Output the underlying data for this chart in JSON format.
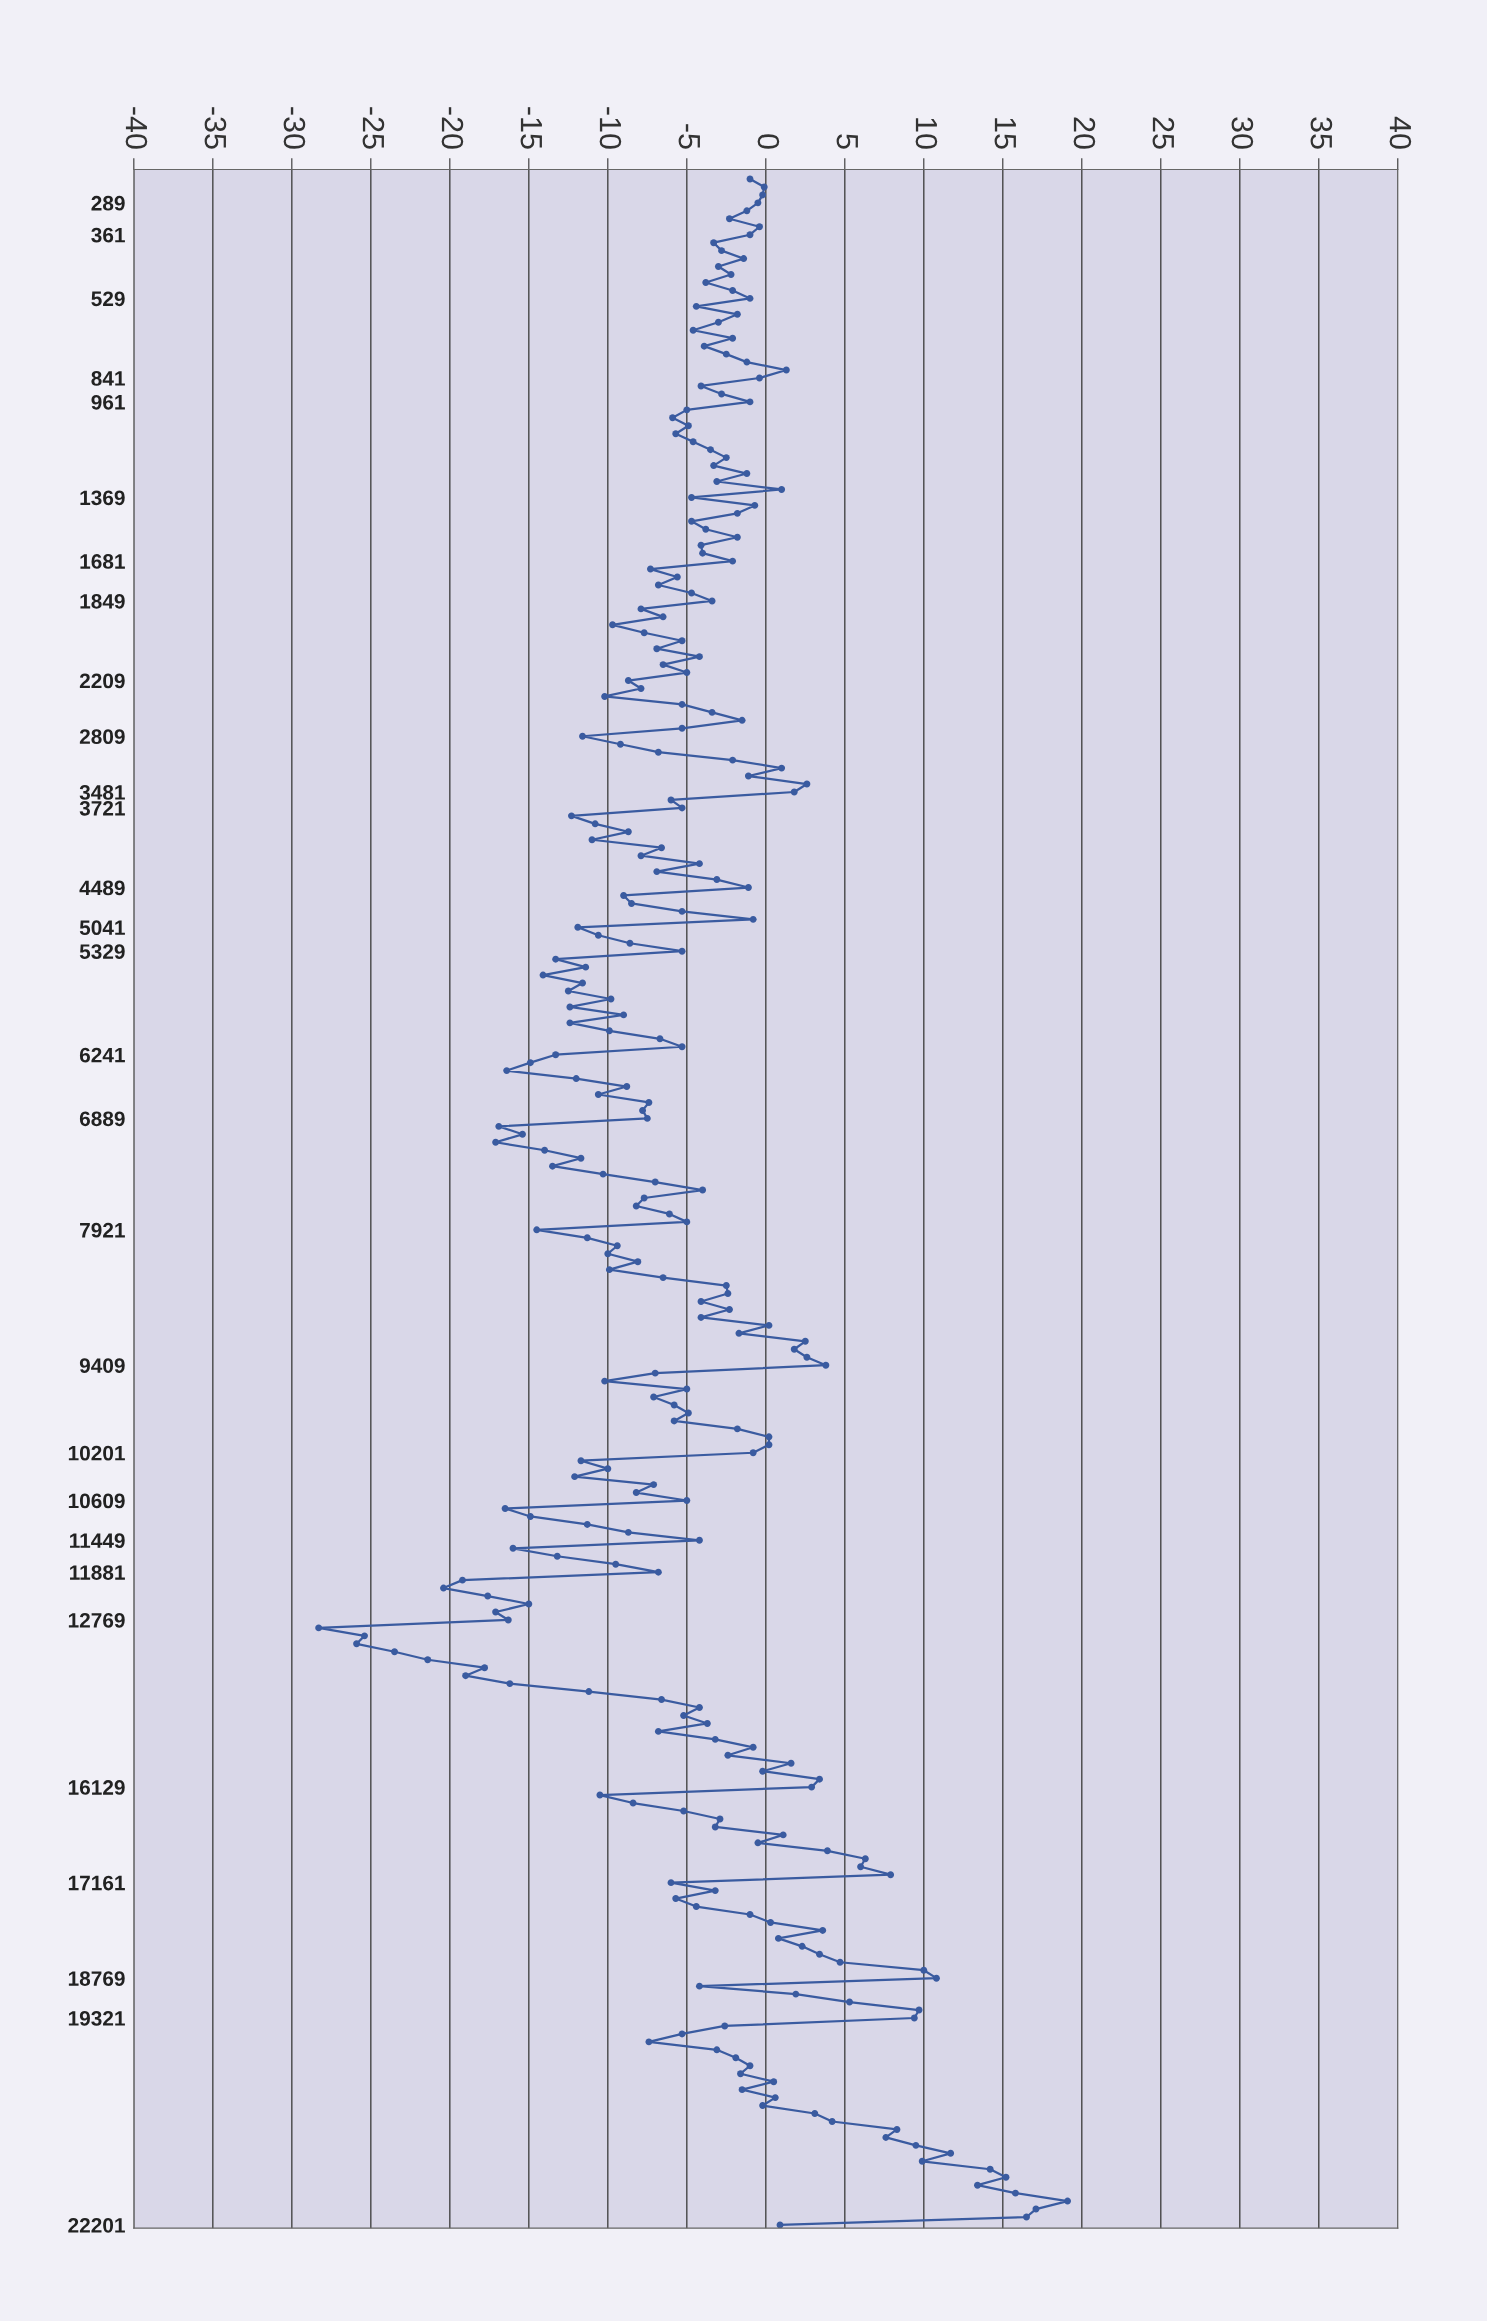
{
  "chart_data": {
    "type": "line",
    "orientation": "horizontal",
    "categories": [
      null,
      null,
      null,
      "289",
      null,
      null,
      null,
      "361",
      null,
      null,
      null,
      null,
      null,
      null,
      null,
      "529",
      null,
      null,
      null,
      null,
      null,
      null,
      null,
      null,
      null,
      "841",
      null,
      null,
      "961",
      null,
      null,
      null,
      null,
      null,
      null,
      null,
      null,
      null,
      null,
      null,
      "1369",
      null,
      null,
      null,
      null,
      null,
      null,
      null,
      "1681",
      null,
      null,
      null,
      null,
      "1849",
      null,
      null,
      null,
      null,
      null,
      null,
      null,
      null,
      null,
      "2209",
      null,
      null,
      null,
      null,
      null,
      null,
      "2809",
      null,
      null,
      null,
      null,
      null,
      null,
      "3481",
      null,
      "3721",
      null,
      null,
      null,
      null,
      null,
      null,
      null,
      null,
      null,
      "4489",
      null,
      null,
      null,
      null,
      "5041",
      null,
      null,
      "5329",
      null,
      null,
      null,
      null,
      null,
      null,
      null,
      null,
      null,
      null,
      null,
      null,
      "6241",
      null,
      null,
      null,
      null,
      null,
      null,
      null,
      "6889",
      null,
      null,
      null,
      null,
      null,
      null,
      null,
      null,
      null,
      null,
      null,
      null,
      null,
      "7921",
      null,
      null,
      null,
      null,
      null,
      null,
      null,
      null,
      null,
      null,
      null,
      null,
      null,
      null,
      null,
      null,
      "9409",
      null,
      null,
      null,
      null,
      null,
      null,
      null,
      null,
      null,
      null,
      "10201",
      null,
      null,
      null,
      null,
      null,
      "10609",
      null,
      null,
      null,
      null,
      "11449",
      null,
      null,
      null,
      "11881",
      null,
      null,
      null,
      null,
      null,
      "12769",
      null,
      null,
      null,
      null,
      null,
      null,
      null,
      null,
      null,
      null,
      null,
      null,
      null,
      null,
      null,
      null,
      null,
      null,
      null,
      null,
      "16129",
      null,
      null,
      null,
      null,
      null,
      null,
      null,
      null,
      null,
      null,
      null,
      "17161",
      null,
      null,
      null,
      null,
      null,
      null,
      null,
      null,
      null,
      null,
      null,
      "18769",
      null,
      null,
      null,
      null,
      "19321",
      null,
      null,
      null,
      null,
      null,
      null,
      null,
      null,
      null,
      null,
      null,
      null,
      null,
      null,
      null,
      null,
      null,
      null,
      null,
      null,
      null,
      null,
      null,
      null,
      null,
      "22201"
    ],
    "series": [
      {
        "color": "#3a5ba0",
        "values": [
          -1,
          -0.1,
          -0.2,
          -0.5,
          -1.2,
          -2.3,
          -0.4,
          -1,
          -3.3,
          -2.8,
          -1.4,
          -3,
          -2.2,
          -3.8,
          -2.1,
          -1,
          -4.4,
          -1.8,
          -3,
          -4.6,
          -2.1,
          -3.9,
          -2.5,
          -1.2,
          1.3,
          -0.4,
          -4.1,
          -2.8,
          -1,
          -5,
          -5.9,
          -4.9,
          -5.7,
          -4.6,
          -3.5,
          -2.5,
          -3.3,
          -1.2,
          -3.1,
          1,
          -4.7,
          -0.7,
          -1.8,
          -4.7,
          -3.8,
          -1.8,
          -4.1,
          -4,
          -2.1,
          -7.3,
          -5.6,
          -6.8,
          -4.7,
          -3.4,
          -7.9,
          -6.5,
          -9.7,
          -7.7,
          -5.3,
          -6.9,
          -4.2,
          -6.5,
          -5,
          -8.7,
          -7.9,
          -10.2,
          -5.3,
          -3.4,
          -1.5,
          -5.3,
          -11.6,
          -9.2,
          -6.8,
          -2.1,
          1,
          -1.1,
          2.6,
          1.8,
          -6,
          -5.3,
          -12.3,
          -10.8,
          -8.7,
          -11,
          -6.6,
          -7.9,
          -4.2,
          -6.9,
          -3.1,
          -1.1,
          -9,
          -8.5,
          -5.3,
          -0.8,
          -11.9,
          -10.6,
          -8.6,
          -5.3,
          -13.3,
          -11.4,
          -14.1,
          -11.6,
          -12.5,
          -9.8,
          -12.4,
          -9,
          -12.4,
          -9.9,
          -6.7,
          -5.3,
          -13.3,
          -14.9,
          -16.4,
          -12,
          -8.8,
          -10.6,
          -7.4,
          -7.8,
          -7.5,
          -16.9,
          -15.4,
          -17.1,
          -14,
          -11.7,
          -13.5,
          -10.3,
          -7,
          -4,
          -7.7,
          -8.2,
          -6.1,
          -5,
          -14.5,
          -11.3,
          -9.4,
          -10,
          -8.1,
          -9.9,
          -6.5,
          -2.5,
          -2.4,
          -4.1,
          -2.3,
          -4.1,
          0.2,
          -1.7,
          2.5,
          1.8,
          2.6,
          3.8,
          -7,
          -10.2,
          -5,
          -7.1,
          -5.8,
          -4.9,
          -5.8,
          -1.8,
          0.2,
          0.2,
          -0.8,
          -11.7,
          -10,
          -12.1,
          -7.1,
          -8.2,
          -5,
          -16.5,
          -14.9,
          -11.3,
          -8.7,
          -4.2,
          -16,
          -13.2,
          -9.5,
          -6.8,
          -19.2,
          -20.4,
          -17.6,
          -15,
          -17.1,
          -16.3,
          -28.3,
          -25.4,
          -25.9,
          -23.5,
          -21.4,
          -17.8,
          -19,
          -16.2,
          -11.2,
          -6.6,
          -4.2,
          -5.2,
          -3.7,
          -6.8,
          -3.2,
          -0.8,
          -2.4,
          1.6,
          -0.2,
          3.4,
          2.9,
          -10.5,
          -8.4,
          -5.2,
          -2.9,
          -3.2,
          1.1,
          -0.5,
          3.9,
          6.3,
          6,
          7.9,
          -6,
          -3.2,
          -5.7,
          -4.4,
          -1,
          0.3,
          3.6,
          0.8,
          2.3,
          3.4,
          4.7,
          10,
          10.8,
          -4.2,
          1.9,
          5.3,
          9.7,
          9.4,
          -2.6,
          -5.3,
          -7.4,
          -3.1,
          -1.9,
          -1,
          -1.6,
          0.5,
          -1.5,
          0.6,
          -0.2,
          3.1,
          4.2,
          8.3,
          7.6,
          9.5,
          11.7,
          9.9,
          14.2,
          15.2,
          13.4,
          15.8,
          19.1,
          17.1,
          16.5,
          0.9
        ]
      }
    ],
    "xlim": [
      -40,
      40
    ],
    "xticks": [
      -40,
      -35,
      -30,
      -25,
      -20,
      -15,
      -10,
      -5,
      0,
      5,
      10,
      15,
      20,
      25,
      30,
      35,
      40
    ],
    "grid": "x",
    "marker": "circle",
    "line_style": "solid"
  }
}
